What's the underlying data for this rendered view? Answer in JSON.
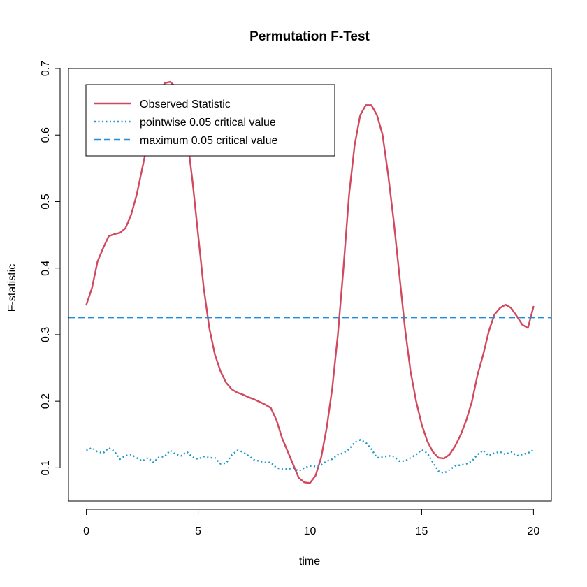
{
  "chart_data": {
    "type": "line",
    "title": "Permutation F-Test",
    "xlabel": "time",
    "ylabel": "F-statistic",
    "xlim": [
      -0.8,
      20.8
    ],
    "ylim": [
      0.05,
      0.7
    ],
    "xticks": [
      0,
      5,
      10,
      15,
      20
    ],
    "xtick_labels": [
      "0",
      "5",
      "10",
      "15",
      "20"
    ],
    "yticks": [
      0.1,
      0.2,
      0.3,
      0.4,
      0.5,
      0.6,
      0.7
    ],
    "ytick_labels": [
      "0.1",
      "0.2",
      "0.3",
      "0.4",
      "0.5",
      "0.6",
      "0.7"
    ],
    "grid": false,
    "legend_position": "top-left",
    "series": [
      {
        "name": "Observed Statistic",
        "style": "solid",
        "color": "#D2485F",
        "x": [
          0,
          0.25,
          0.5,
          0.75,
          1,
          1.25,
          1.5,
          1.75,
          2,
          2.25,
          2.5,
          2.75,
          3,
          3.25,
          3.5,
          3.75,
          4,
          4.25,
          4.5,
          4.75,
          5,
          5.25,
          5.5,
          5.75,
          6,
          6.25,
          6.5,
          6.75,
          7,
          7.25,
          7.5,
          7.75,
          8,
          8.25,
          8.5,
          8.75,
          9,
          9.25,
          9.5,
          9.75,
          10,
          10.25,
          10.5,
          10.75,
          11,
          11.25,
          11.5,
          11.75,
          12,
          12.25,
          12.5,
          12.75,
          13,
          13.25,
          13.5,
          13.75,
          14,
          14.25,
          14.5,
          14.75,
          15,
          15.25,
          15.5,
          15.75,
          16,
          16.25,
          16.5,
          16.75,
          17,
          17.25,
          17.5,
          17.75,
          18,
          18.25,
          18.5,
          18.75,
          19,
          19.25,
          19.5,
          19.75,
          20
        ],
        "y": [
          0.345,
          0.37,
          0.41,
          0.43,
          0.448,
          0.451,
          0.453,
          0.46,
          0.48,
          0.51,
          0.55,
          0.59,
          0.63,
          0.66,
          0.678,
          0.68,
          0.672,
          0.65,
          0.6,
          0.53,
          0.45,
          0.37,
          0.31,
          0.27,
          0.245,
          0.228,
          0.218,
          0.213,
          0.21,
          0.206,
          0.203,
          0.199,
          0.195,
          0.19,
          0.172,
          0.145,
          0.125,
          0.105,
          0.085,
          0.078,
          0.077,
          0.088,
          0.115,
          0.16,
          0.22,
          0.3,
          0.4,
          0.51,
          0.585,
          0.63,
          0.645,
          0.645,
          0.63,
          0.6,
          0.54,
          0.47,
          0.39,
          0.31,
          0.245,
          0.2,
          0.165,
          0.14,
          0.124,
          0.115,
          0.114,
          0.12,
          0.133,
          0.15,
          0.172,
          0.2,
          0.24,
          0.27,
          0.305,
          0.33,
          0.34,
          0.345,
          0.34,
          0.328,
          0.315,
          0.31,
          0.342
        ]
      },
      {
        "name": "pointwise 0.05 critical value",
        "style": "dotted",
        "color": "#1E98C6",
        "x": [
          0,
          0.25,
          0.5,
          0.75,
          1,
          1.25,
          1.5,
          1.75,
          2,
          2.25,
          2.5,
          2.75,
          3,
          3.25,
          3.5,
          3.75,
          4,
          4.25,
          4.5,
          4.75,
          5,
          5.25,
          5.5,
          5.75,
          6,
          6.25,
          6.5,
          6.75,
          7,
          7.25,
          7.5,
          7.75,
          8,
          8.25,
          8.5,
          8.75,
          9,
          9.25,
          9.5,
          9.75,
          10,
          10.25,
          10.5,
          10.75,
          11,
          11.25,
          11.5,
          11.75,
          12,
          12.25,
          12.5,
          12.75,
          13,
          13.25,
          13.5,
          13.75,
          14,
          14.25,
          14.5,
          14.75,
          15,
          15.25,
          15.5,
          15.75,
          16,
          16.25,
          16.5,
          16.75,
          17,
          17.25,
          17.5,
          17.75,
          18,
          18.25,
          18.5,
          18.75,
          19,
          19.25,
          19.5,
          19.75,
          20
        ],
        "y": [
          0.126,
          0.13,
          0.124,
          0.122,
          0.13,
          0.125,
          0.113,
          0.118,
          0.12,
          0.115,
          0.11,
          0.115,
          0.108,
          0.116,
          0.117,
          0.126,
          0.12,
          0.118,
          0.124,
          0.116,
          0.113,
          0.117,
          0.115,
          0.115,
          0.106,
          0.107,
          0.119,
          0.126,
          0.124,
          0.118,
          0.112,
          0.11,
          0.108,
          0.108,
          0.1,
          0.098,
          0.098,
          0.1,
          0.095,
          0.1,
          0.103,
          0.102,
          0.104,
          0.11,
          0.113,
          0.12,
          0.122,
          0.128,
          0.138,
          0.142,
          0.138,
          0.128,
          0.115,
          0.116,
          0.118,
          0.117,
          0.11,
          0.11,
          0.115,
          0.12,
          0.127,
          0.122,
          0.108,
          0.095,
          0.092,
          0.097,
          0.103,
          0.104,
          0.106,
          0.11,
          0.12,
          0.126,
          0.118,
          0.122,
          0.124,
          0.12,
          0.124,
          0.118,
          0.12,
          0.122,
          0.127
        ]
      },
      {
        "name": "maximum 0.05 critical value",
        "style": "dashed",
        "color": "#1E8FDD",
        "x": [
          -0.8,
          20.8
        ],
        "y": [
          0.326,
          0.326
        ]
      }
    ]
  }
}
